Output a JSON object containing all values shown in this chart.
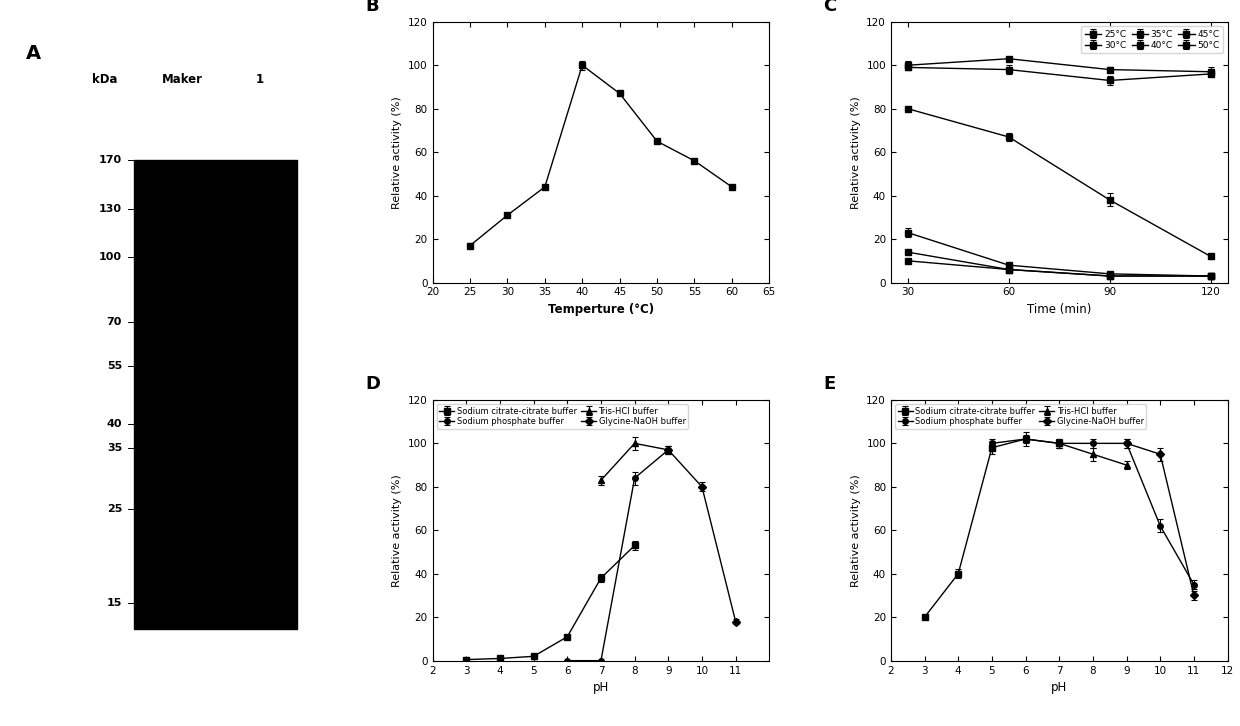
{
  "panel_A": {
    "label": "A",
    "kda_labels": [
      "170",
      "130",
      "100",
      "70",
      "55",
      "40",
      "35",
      "25",
      "15"
    ],
    "kda_values": [
      170,
      130,
      100,
      70,
      55,
      40,
      35,
      25,
      15
    ],
    "col_labels": [
      "kDa",
      "Maker",
      "1"
    ]
  },
  "panel_B": {
    "label": "B",
    "x": [
      25,
      30,
      35,
      40,
      45,
      50,
      55,
      60
    ],
    "y": [
      17,
      31,
      44,
      100,
      87,
      65,
      56,
      44
    ],
    "yerr": [
      1,
      1,
      1,
      2,
      1,
      1,
      1,
      1
    ],
    "xlabel": "Temperture (°C)",
    "ylabel": "Relative activity (%)",
    "xlim": [
      20,
      65
    ],
    "ylim": [
      0,
      120
    ],
    "yticks": [
      0,
      20,
      40,
      60,
      80,
      100,
      120
    ],
    "xticks": [
      20,
      25,
      30,
      35,
      40,
      45,
      50,
      55,
      60,
      65
    ]
  },
  "panel_C": {
    "label": "C",
    "x": [
      30,
      60,
      90,
      120
    ],
    "series_order": [
      "25°C",
      "30°C",
      "35°C",
      "40°C",
      "45°C",
      "50°C"
    ],
    "series": {
      "25°C": {
        "y": [
          100,
          103,
          98,
          97
        ],
        "yerr": [
          2,
          1,
          1,
          2
        ]
      },
      "30°C": {
        "y": [
          99,
          98,
          93,
          96
        ],
        "yerr": [
          1,
          2,
          2,
          1
        ]
      },
      "35°C": {
        "y": [
          80,
          67,
          38,
          12
        ],
        "yerr": [
          1,
          2,
          3,
          1
        ]
      },
      "40°C": {
        "y": [
          23,
          8,
          4,
          3
        ],
        "yerr": [
          2,
          1,
          1,
          0.5
        ]
      },
      "45°C": {
        "y": [
          14,
          6,
          3,
          3
        ],
        "yerr": [
          1,
          0.5,
          0.5,
          0.5
        ]
      },
      "50°C": {
        "y": [
          10,
          6,
          3,
          3
        ],
        "yerr": [
          1,
          0.5,
          0.5,
          0.5
        ]
      }
    },
    "xlabel": "Time (min)",
    "ylabel": "Relative activity (%)",
    "xlim": [
      25,
      125
    ],
    "ylim": [
      0,
      120
    ],
    "yticks": [
      0,
      20,
      40,
      60,
      80,
      100,
      120
    ],
    "xticks": [
      30,
      60,
      90,
      120
    ],
    "legend_row1": [
      "25°C",
      "30°C",
      "35°C"
    ],
    "legend_row2": [
      "40°C",
      "45°C",
      "50°C"
    ]
  },
  "panel_D": {
    "label": "D",
    "series_order": [
      "Sodium citrate-citrate buffer",
      "Sodium phosphate buffer",
      "Tris-HCl buffer",
      "Glycine-NaOH buffer"
    ],
    "series": {
      "Sodium citrate-citrate buffer": {
        "x": [
          3,
          4,
          5,
          6,
          7,
          8
        ],
        "y": [
          0.5,
          1,
          2,
          11,
          38,
          53
        ],
        "yerr": [
          0.2,
          0.2,
          0.3,
          1,
          2,
          2
        ]
      },
      "Sodium phosphate buffer": {
        "x": [
          6,
          7,
          8,
          9
        ],
        "y": [
          0,
          0,
          84,
          97
        ],
        "yerr": [
          0,
          0,
          3,
          2
        ]
      },
      "Tris-HCl buffer": {
        "x": [
          7,
          8,
          9
        ],
        "y": [
          83,
          100,
          97
        ],
        "yerr": [
          2,
          3,
          2
        ]
      },
      "Glycine-NaOH buffer": {
        "x": [
          9,
          10,
          11
        ],
        "y": [
          97,
          80,
          18
        ],
        "yerr": [
          2,
          2,
          1
        ]
      }
    },
    "xlabel": "pH",
    "ylabel": "Relative activity (%)",
    "xlim": [
      2,
      12
    ],
    "ylim": [
      0,
      120
    ],
    "yticks": [
      0,
      20,
      40,
      60,
      80,
      100,
      120
    ],
    "xticks": [
      2,
      3,
      4,
      5,
      6,
      7,
      8,
      9,
      10,
      11
    ]
  },
  "panel_E": {
    "label": "E",
    "series_order": [
      "Sodium citrate-citrate buffer",
      "Sodium phosphate buffer",
      "Tris-HCl buffer",
      "Glycine-NaOH buffer"
    ],
    "series": {
      "Sodium citrate-citrate buffer": {
        "x": [
          3,
          4,
          5,
          6,
          7
        ],
        "y": [
          20,
          40,
          98,
          102,
          100
        ],
        "yerr": [
          1,
          2,
          3,
          3,
          2
        ]
      },
      "Sodium phosphate buffer": {
        "x": [
          5,
          6,
          7,
          8,
          9,
          10,
          11
        ],
        "y": [
          100,
          102,
          100,
          100,
          100,
          62,
          35
        ],
        "yerr": [
          2,
          2,
          2,
          2,
          2,
          3,
          2
        ]
      },
      "Tris-HCl buffer": {
        "x": [
          7,
          8,
          9
        ],
        "y": [
          100,
          95,
          90
        ],
        "yerr": [
          2,
          3,
          2
        ]
      },
      "Glycine-NaOH buffer": {
        "x": [
          9,
          10,
          11
        ],
        "y": [
          100,
          95,
          30
        ],
        "yerr": [
          2,
          3,
          2
        ]
      }
    },
    "xlabel": "pH",
    "ylabel": "Relative activity (%)",
    "xlim": [
      2,
      12
    ],
    "ylim": [
      0,
      120
    ],
    "yticks": [
      0,
      20,
      40,
      60,
      80,
      100,
      120
    ],
    "xticks": [
      2,
      3,
      4,
      5,
      6,
      7,
      8,
      9,
      10,
      11,
      12
    ]
  }
}
